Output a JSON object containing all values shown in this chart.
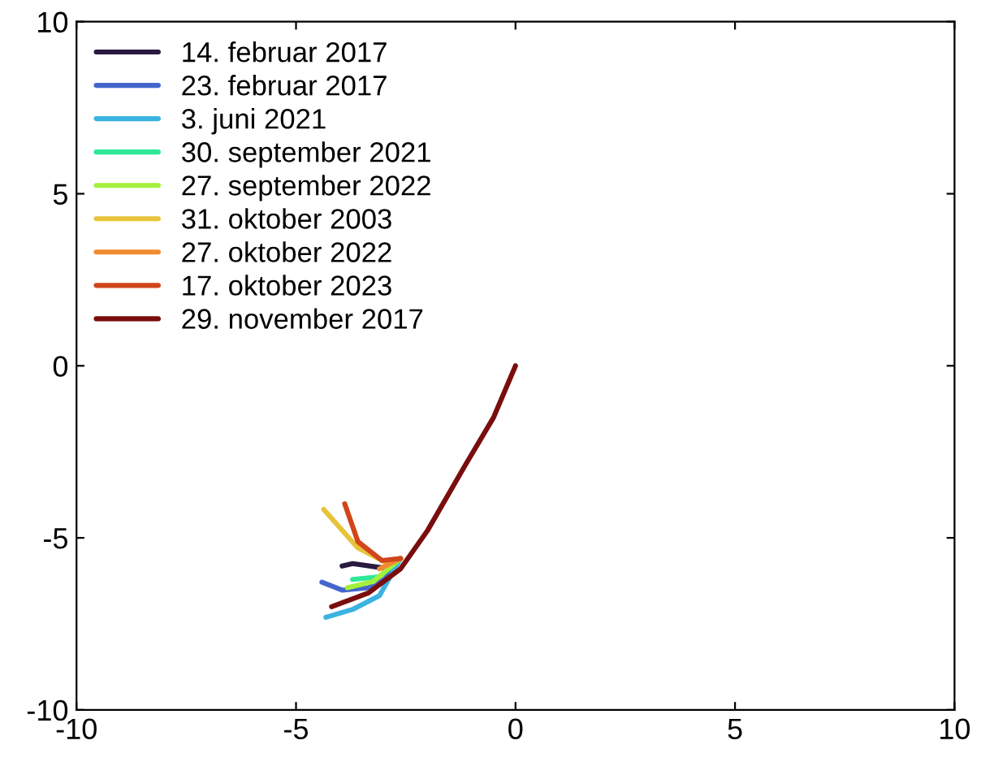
{
  "chart_data": {
    "type": "line",
    "xlim": [
      -10,
      10
    ],
    "ylim": [
      -10,
      10
    ],
    "xticks": [
      -10,
      -5,
      0,
      5,
      10
    ],
    "yticks": [
      -10,
      -5,
      0,
      5,
      10
    ],
    "grid": false,
    "legend": "top left",
    "line_style": "solid",
    "marker": "none",
    "series": [
      {
        "name": "14. februar 2017",
        "color": "#2a1a3f",
        "x": [
          -2.62,
          -2.98,
          -3.71,
          -3.95
        ],
        "values": [
          -5.6,
          -5.88,
          -5.75,
          -5.82
        ]
      },
      {
        "name": "23. februar 2017",
        "color": "#4466cc",
        "x": [
          -2.62,
          -2.98,
          -3.35,
          -3.95,
          -4.41
        ],
        "values": [
          -5.6,
          -6.2,
          -6.45,
          -6.52,
          -6.29
        ]
      },
      {
        "name": "3. juni 2021",
        "color": "#3bb3e0",
        "x": [
          -2.62,
          -3.1,
          -3.71,
          -4.32
        ],
        "values": [
          -5.6,
          -6.68,
          -7.08,
          -7.31
        ]
      },
      {
        "name": "30. september 2021",
        "color": "#2ee89a",
        "x": [
          -2.62,
          -3.1,
          -3.71
        ],
        "values": [
          -5.6,
          -6.13,
          -6.21
        ]
      },
      {
        "name": "27. september 2022",
        "color": "#a4f03c",
        "x": [
          -2.62,
          -3.24,
          -3.83
        ],
        "values": [
          -5.6,
          -6.27,
          -6.45
        ]
      },
      {
        "name": "31. oktober 2003",
        "color": "#e8c33a",
        "x": [
          -2.62,
          -2.92,
          -3.6,
          -4.37
        ],
        "values": [
          -5.6,
          -5.74,
          -5.28,
          -4.17
        ]
      },
      {
        "name": "27. oktober 2022",
        "color": "#f28a30",
        "x": [
          -2.62,
          -3.1
        ],
        "values": [
          -5.6,
          -5.9
        ]
      },
      {
        "name": "17. oktober 2023",
        "color": "#d0461a",
        "x": [
          -2.62,
          -3.04,
          -3.59,
          -3.89
        ],
        "values": [
          -5.6,
          -5.66,
          -5.11,
          -4.01
        ]
      },
      {
        "name": "29. november 2017",
        "color": "#7a0d0d",
        "x": [
          0,
          -0.5,
          -1.16,
          -2.01,
          -2.62,
          -3.35,
          -4.19
        ],
        "values": [
          0,
          -1.5,
          -2.92,
          -4.8,
          -5.9,
          -6.6,
          -7.0
        ]
      }
    ]
  }
}
